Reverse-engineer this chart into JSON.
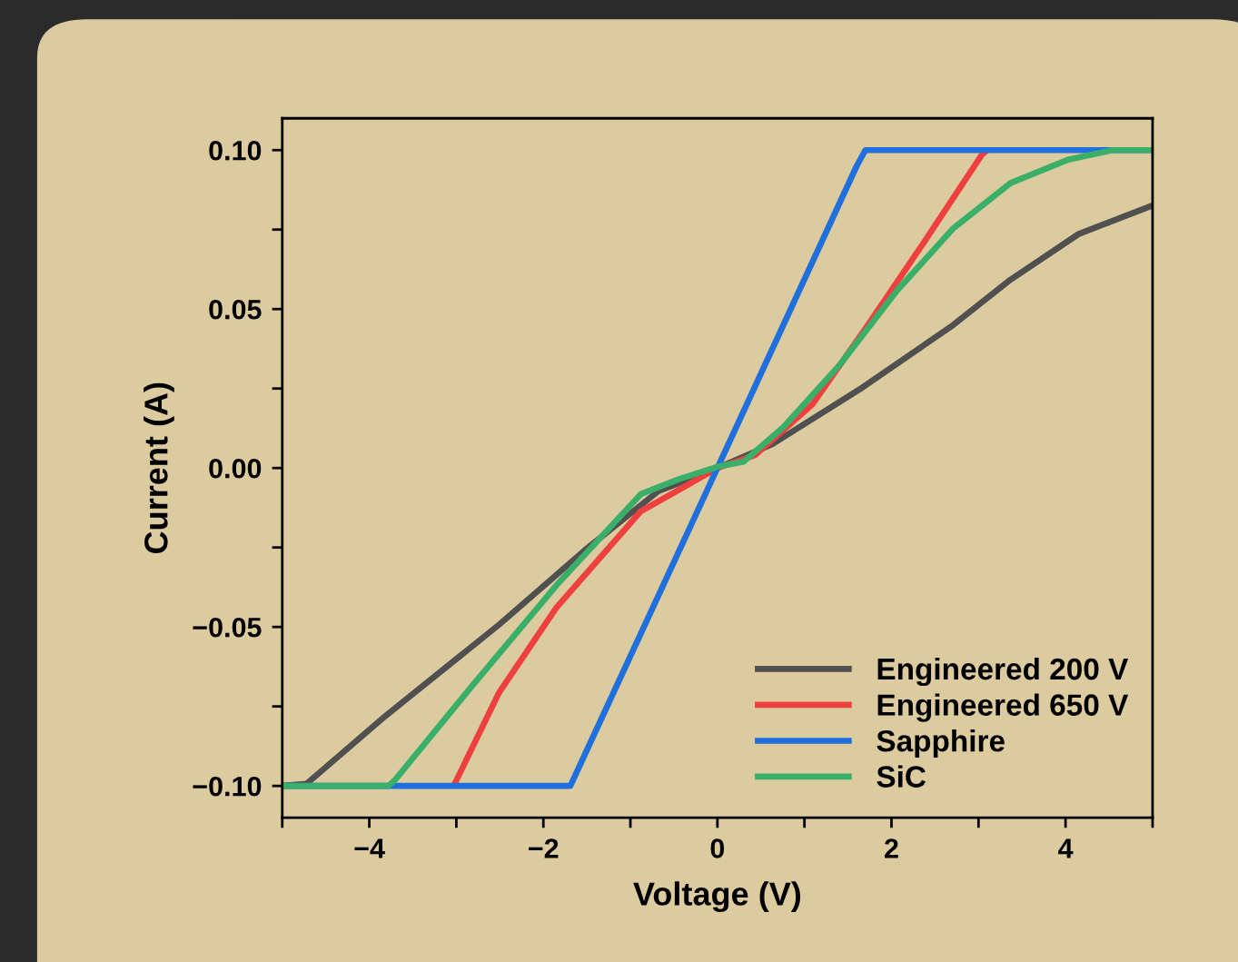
{
  "chart_data": {
    "type": "line",
    "xlabel": "Voltage (V)",
    "ylabel": "Current (A)",
    "xlim": [
      -5,
      5
    ],
    "ylim": [
      -0.11,
      0.11
    ],
    "xticks": [
      {
        "value": -5,
        "label": null
      },
      {
        "value": -4,
        "label": "−4"
      },
      {
        "value": -3,
        "label": null
      },
      {
        "value": -2,
        "label": "−2"
      },
      {
        "value": -1,
        "label": null
      },
      0,
      {
        "value": 1,
        "label": null
      },
      2,
      {
        "value": 3,
        "label": null
      },
      4,
      {
        "value": 5,
        "label": null
      }
    ],
    "yticks": [
      {
        "value": -0.1,
        "label": "−0.10"
      },
      {
        "value": -0.075,
        "label": null
      },
      {
        "value": -0.05,
        "label": "−0.05"
      },
      {
        "value": -0.025,
        "label": null
      },
      {
        "value": 0,
        "label": "0.00"
      },
      {
        "value": 0.025,
        "label": null
      },
      {
        "value": 0.05,
        "label": "0.05"
      },
      {
        "value": 0.075,
        "label": null
      },
      {
        "value": 0.1,
        "label": "0.10"
      }
    ],
    "grid": false,
    "legend": "bottom right",
    "line_style": "solid",
    "marker": "none",
    "series": [
      {
        "name": "Engineered 200 V",
        "color": "#505050",
        "x": [
          -5,
          -4.72,
          -3.81,
          -2.51,
          -1.53,
          -0.68,
          0,
          0.63,
          1.67,
          2.71,
          3.37,
          4.15,
          5.0
        ],
        "values": [
          -0.1,
          -0.0993,
          -0.0779,
          -0.0493,
          -0.026,
          -0.0073,
          0,
          0.0075,
          0.0254,
          0.045,
          0.0593,
          0.0736,
          0.0826
        ]
      },
      {
        "name": "Engineered 650 V",
        "color": "#ef4040",
        "x": [
          -3.03,
          -2.51,
          -1.85,
          -0.88,
          0,
          0.43,
          1.09,
          1.73,
          2.39,
          3.04,
          3.1
        ],
        "values": [
          -0.1,
          -0.0707,
          -0.0439,
          -0.0136,
          0,
          0.004,
          0.02,
          0.045,
          0.0717,
          0.0986,
          0.1
        ]
      },
      {
        "name": "Sapphire",
        "color": "#1f6fdc",
        "x": [
          -5,
          -1.69,
          0,
          1.6,
          1.7,
          5
        ],
        "values": [
          -0.1,
          -0.1,
          0,
          0.095,
          0.1,
          0.1
        ]
      },
      {
        "name": "SiC",
        "color": "#3aaf6a",
        "x": [
          -5,
          -3.78,
          -3.7,
          -2.83,
          -1.85,
          -0.88,
          -0.44,
          0,
          0.3,
          0.76,
          1.41,
          2.06,
          2.71,
          3.37,
          4.02,
          4.54,
          5
        ],
        "values": [
          -0.1,
          -0.1,
          -0.098,
          -0.0689,
          -0.0369,
          -0.0082,
          -0.0035,
          0.0004,
          0.002,
          0.0129,
          0.0326,
          0.0557,
          0.0754,
          0.0897,
          0.0969,
          0.1,
          0.1
        ]
      }
    ]
  }
}
